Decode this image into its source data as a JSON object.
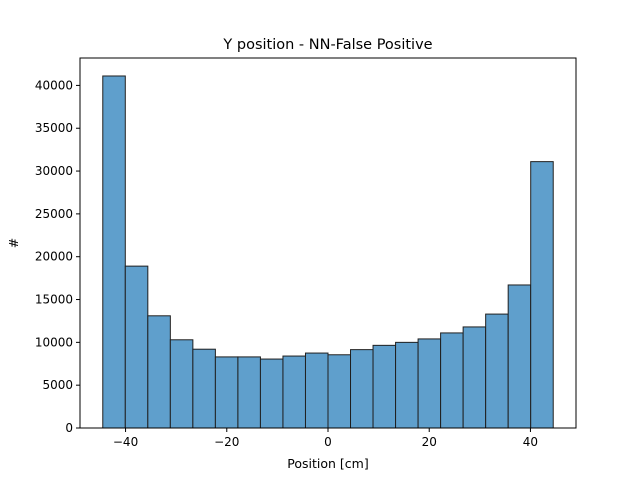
{
  "chart_data": {
    "type": "bar",
    "title": "Y position - NN-False Positive",
    "xlabel": "Position [cm]",
    "ylabel": "#",
    "bar_color": "#5f9fcc",
    "edge_color": "#1f1f1f",
    "xlim": [
      -49,
      49
    ],
    "ylim": [
      0,
      43200
    ],
    "xticks": [
      -40,
      -20,
      0,
      20,
      40
    ],
    "yticks": [
      0,
      5000,
      10000,
      15000,
      20000,
      25000,
      30000,
      35000,
      40000
    ],
    "bin_edges": [
      -44.5,
      -40.05,
      -35.6,
      -31.15,
      -26.7,
      -22.25,
      -17.8,
      -13.35,
      -8.9,
      -4.45,
      0,
      4.45,
      8.9,
      13.35,
      17.8,
      22.25,
      26.7,
      31.15,
      35.6,
      40.05,
      44.5
    ],
    "values": [
      41100,
      18900,
      13100,
      10300,
      9200,
      8300,
      8300,
      8050,
      8400,
      8750,
      8550,
      9150,
      9650,
      10000,
      10400,
      11100,
      11800,
      13300,
      16700,
      31100
    ],
    "grid": false
  }
}
